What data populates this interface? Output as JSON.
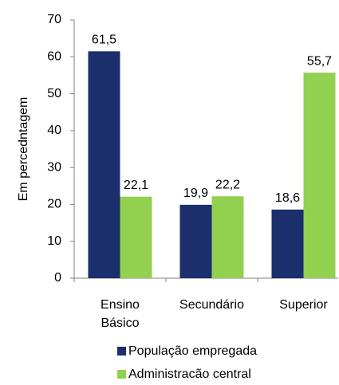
{
  "chart_data": {
    "type": "bar",
    "y_label": "Em percedntagem",
    "categories": [
      "Ensino Básico",
      "Secundário",
      "Superior"
    ],
    "series": [
      {
        "name": "População empregada",
        "color": "#1a2f6b",
        "values": [
          61.5,
          19.9,
          18.6
        ],
        "value_labels": [
          "61,5",
          "19,9",
          "18,6"
        ]
      },
      {
        "name": "Administracão central",
        "color": "#92d050",
        "values": [
          22.1,
          22.2,
          55.7
        ],
        "value_labels": [
          "22,1",
          "22,2",
          "55,7"
        ]
      }
    ],
    "ylim": [
      0,
      70
    ],
    "yticks": [
      0,
      10,
      20,
      30,
      40,
      50,
      60,
      70
    ],
    "grid": false
  }
}
